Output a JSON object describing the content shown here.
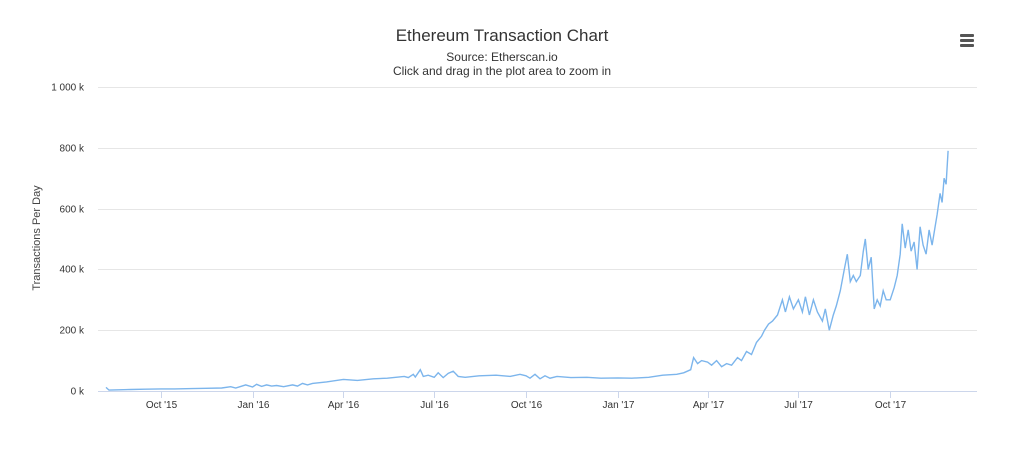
{
  "header": {
    "title": "Ethereum Transaction Chart",
    "subtitle_source": "Source: Etherscan.io",
    "subtitle_hint": "Click and drag in the plot area to zoom in",
    "menu_icon": "hamburger-menu-icon"
  },
  "colors": {
    "series": "#7cb5ec",
    "gridline": "#e6e6e6",
    "axis_line": "#ccd6eb",
    "text": "#333333"
  },
  "chart_data": {
    "type": "line",
    "title": "Ethereum Transaction Chart",
    "subtitle": "Source: Etherscan.io — Click and drag in the plot area to zoom in",
    "xlabel": "",
    "ylabel": "Transactions Per Day",
    "ylim": [
      0,
      1000000
    ],
    "y_ticks": [
      {
        "value": 0,
        "label": "0 k"
      },
      {
        "value": 200000,
        "label": "200 k"
      },
      {
        "value": 400000,
        "label": "400 k"
      },
      {
        "value": 600000,
        "label": "600 k"
      },
      {
        "value": 800000,
        "label": "800 k"
      },
      {
        "value": 1000000,
        "label": "1 000 k"
      }
    ],
    "x_ticks": [
      {
        "value": "2015-10-01",
        "label": "Oct '15"
      },
      {
        "value": "2016-01-01",
        "label": "Jan '16"
      },
      {
        "value": "2016-04-01",
        "label": "Apr '16"
      },
      {
        "value": "2016-07-01",
        "label": "Jul '16"
      },
      {
        "value": "2016-10-01",
        "label": "Oct '16"
      },
      {
        "value": "2017-01-01",
        "label": "Jan '17"
      },
      {
        "value": "2017-04-01",
        "label": "Apr '17"
      },
      {
        "value": "2017-07-01",
        "label": "Jul '17"
      },
      {
        "value": "2017-10-01",
        "label": "Oct '17"
      }
    ],
    "xlim": [
      "2015-07-30",
      "2017-12-27"
    ],
    "grid": true,
    "legend": false,
    "series": [
      {
        "color": "#7cb5ec",
        "points": [
          [
            "2015-08-07",
            12000
          ],
          [
            "2015-08-10",
            3000
          ],
          [
            "2015-08-20",
            4000
          ],
          [
            "2015-09-01",
            5000
          ],
          [
            "2015-09-15",
            6000
          ],
          [
            "2015-10-01",
            7000
          ],
          [
            "2015-10-15",
            7000
          ],
          [
            "2015-11-01",
            8000
          ],
          [
            "2015-11-15",
            9000
          ],
          [
            "2015-12-01",
            10000
          ],
          [
            "2015-12-10",
            14000
          ],
          [
            "2015-12-15",
            10000
          ],
          [
            "2015-12-25",
            20000
          ],
          [
            "2016-01-01",
            13000
          ],
          [
            "2016-01-05",
            22000
          ],
          [
            "2016-01-10",
            15000
          ],
          [
            "2016-01-15",
            20000
          ],
          [
            "2016-01-20",
            16000
          ],
          [
            "2016-01-25",
            18000
          ],
          [
            "2016-02-01",
            14000
          ],
          [
            "2016-02-10",
            20000
          ],
          [
            "2016-02-15",
            16000
          ],
          [
            "2016-02-20",
            25000
          ],
          [
            "2016-02-25",
            20000
          ],
          [
            "2016-03-01",
            25000
          ],
          [
            "2016-03-15",
            30000
          ],
          [
            "2016-04-01",
            38000
          ],
          [
            "2016-04-15",
            35000
          ],
          [
            "2016-05-01",
            40000
          ],
          [
            "2016-05-15",
            42000
          ],
          [
            "2016-06-01",
            48000
          ],
          [
            "2016-06-05",
            44000
          ],
          [
            "2016-06-10",
            55000
          ],
          [
            "2016-06-12",
            46000
          ],
          [
            "2016-06-17",
            70000
          ],
          [
            "2016-06-20",
            48000
          ],
          [
            "2016-06-25",
            52000
          ],
          [
            "2016-07-01",
            45000
          ],
          [
            "2016-07-05",
            60000
          ],
          [
            "2016-07-10",
            44000
          ],
          [
            "2016-07-15",
            58000
          ],
          [
            "2016-07-20",
            65000
          ],
          [
            "2016-07-25",
            48000
          ],
          [
            "2016-08-01",
            45000
          ],
          [
            "2016-08-15",
            50000
          ],
          [
            "2016-09-01",
            52000
          ],
          [
            "2016-09-15",
            48000
          ],
          [
            "2016-09-25",
            55000
          ],
          [
            "2016-10-01",
            50000
          ],
          [
            "2016-10-05",
            42000
          ],
          [
            "2016-10-10",
            55000
          ],
          [
            "2016-10-15",
            40000
          ],
          [
            "2016-10-20",
            50000
          ],
          [
            "2016-10-25",
            42000
          ],
          [
            "2016-11-01",
            48000
          ],
          [
            "2016-11-15",
            44000
          ],
          [
            "2016-12-01",
            45000
          ],
          [
            "2016-12-15",
            42000
          ],
          [
            "2017-01-01",
            43000
          ],
          [
            "2017-01-15",
            42000
          ],
          [
            "2017-02-01",
            45000
          ],
          [
            "2017-02-15",
            52000
          ],
          [
            "2017-03-01",
            55000
          ],
          [
            "2017-03-08",
            60000
          ],
          [
            "2017-03-15",
            70000
          ],
          [
            "2017-03-18",
            110000
          ],
          [
            "2017-03-22",
            90000
          ],
          [
            "2017-03-26",
            100000
          ],
          [
            "2017-04-01",
            95000
          ],
          [
            "2017-04-05",
            85000
          ],
          [
            "2017-04-10",
            100000
          ],
          [
            "2017-04-15",
            80000
          ],
          [
            "2017-04-20",
            90000
          ],
          [
            "2017-04-25",
            85000
          ],
          [
            "2017-05-01",
            110000
          ],
          [
            "2017-05-05",
            100000
          ],
          [
            "2017-05-10",
            130000
          ],
          [
            "2017-05-15",
            120000
          ],
          [
            "2017-05-20",
            160000
          ],
          [
            "2017-05-25",
            180000
          ],
          [
            "2017-05-28",
            200000
          ],
          [
            "2017-06-01",
            220000
          ],
          [
            "2017-06-05",
            230000
          ],
          [
            "2017-06-10",
            250000
          ],
          [
            "2017-06-15",
            300000
          ],
          [
            "2017-06-18",
            260000
          ],
          [
            "2017-06-22",
            310000
          ],
          [
            "2017-06-26",
            270000
          ],
          [
            "2017-07-01",
            300000
          ],
          [
            "2017-07-05",
            260000
          ],
          [
            "2017-07-08",
            310000
          ],
          [
            "2017-07-12",
            250000
          ],
          [
            "2017-07-16",
            300000
          ],
          [
            "2017-07-20",
            260000
          ],
          [
            "2017-07-25",
            230000
          ],
          [
            "2017-07-28",
            270000
          ],
          [
            "2017-08-01",
            200000
          ],
          [
            "2017-08-05",
            250000
          ],
          [
            "2017-08-08",
            280000
          ],
          [
            "2017-08-12",
            330000
          ],
          [
            "2017-08-16",
            400000
          ],
          [
            "2017-08-19",
            450000
          ],
          [
            "2017-08-22",
            360000
          ],
          [
            "2017-08-25",
            380000
          ],
          [
            "2017-08-28",
            360000
          ],
          [
            "2017-09-01",
            380000
          ],
          [
            "2017-09-04",
            460000
          ],
          [
            "2017-09-06",
            500000
          ],
          [
            "2017-09-09",
            400000
          ],
          [
            "2017-09-12",
            440000
          ],
          [
            "2017-09-15",
            270000
          ],
          [
            "2017-09-18",
            300000
          ],
          [
            "2017-09-21",
            280000
          ],
          [
            "2017-09-24",
            330000
          ],
          [
            "2017-09-27",
            300000
          ],
          [
            "2017-10-01",
            300000
          ],
          [
            "2017-10-05",
            340000
          ],
          [
            "2017-10-08",
            380000
          ],
          [
            "2017-10-11",
            450000
          ],
          [
            "2017-10-13",
            550000
          ],
          [
            "2017-10-16",
            470000
          ],
          [
            "2017-10-19",
            530000
          ],
          [
            "2017-10-22",
            460000
          ],
          [
            "2017-10-25",
            490000
          ],
          [
            "2017-10-28",
            400000
          ],
          [
            "2017-10-31",
            540000
          ],
          [
            "2017-11-03",
            480000
          ],
          [
            "2017-11-06",
            450000
          ],
          [
            "2017-11-09",
            530000
          ],
          [
            "2017-11-12",
            480000
          ],
          [
            "2017-11-15",
            540000
          ],
          [
            "2017-11-17",
            580000
          ],
          [
            "2017-11-20",
            650000
          ],
          [
            "2017-11-22",
            620000
          ],
          [
            "2017-11-24",
            700000
          ],
          [
            "2017-11-26",
            680000
          ],
          [
            "2017-11-28",
            790000
          ]
        ]
      }
    ]
  }
}
